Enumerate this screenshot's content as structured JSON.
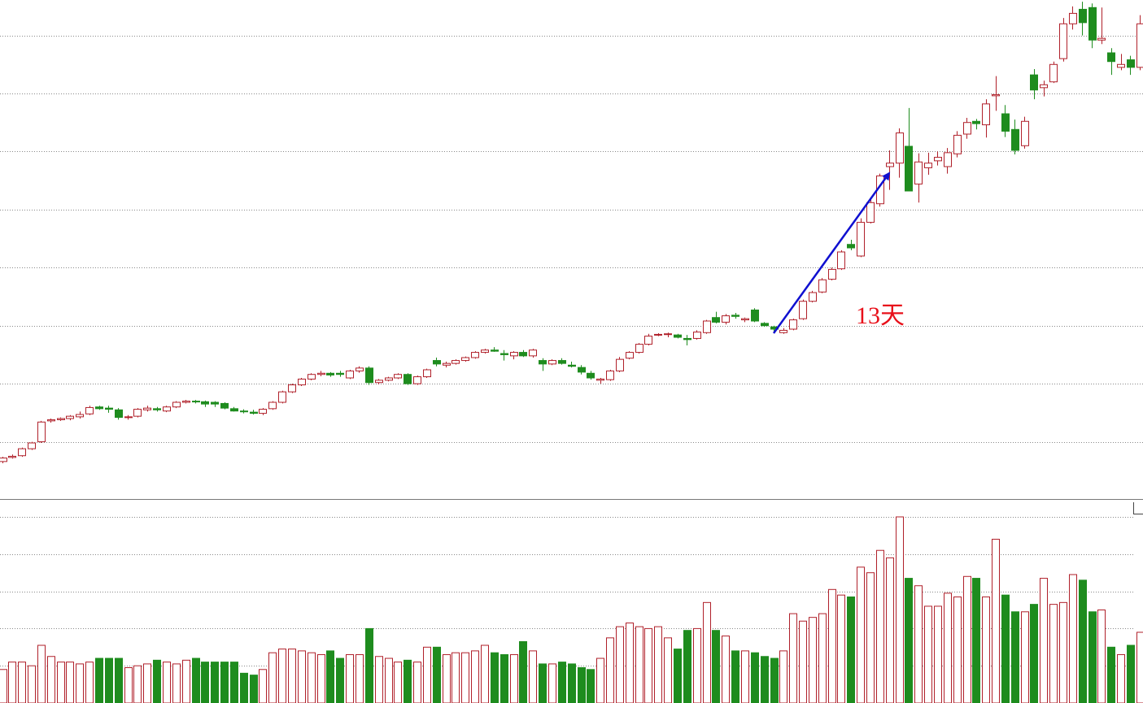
{
  "chart_data": {
    "type": "candlestick",
    "annotation": "13天",
    "up_color": "#b0202a",
    "down_color": "#1e8c1e",
    "grid": true,
    "ylim": [
      0,
      8.61
    ],
    "yticks": [
      1,
      2,
      3,
      4,
      5,
      6,
      7,
      8
    ],
    "volume_ylim": [
      0,
      5
    ],
    "volume_yticks": [
      1,
      2,
      3,
      4,
      5
    ],
    "candles": [
      [
        0.66,
        0.74,
        0.63,
        0.72
      ],
      [
        0.73,
        0.78,
        0.71,
        0.75
      ],
      [
        0.76,
        0.9,
        0.74,
        0.88
      ],
      [
        0.88,
        1.0,
        0.86,
        0.98
      ],
      [
        1.0,
        1.36,
        0.98,
        1.34
      ],
      [
        1.36,
        1.4,
        1.33,
        1.38
      ],
      [
        1.38,
        1.42,
        1.36,
        1.4
      ],
      [
        1.4,
        1.46,
        1.37,
        1.44
      ],
      [
        1.43,
        1.52,
        1.4,
        1.47
      ],
      [
        1.48,
        1.62,
        1.46,
        1.59
      ],
      [
        1.6,
        1.62,
        1.55,
        1.57
      ],
      [
        1.58,
        1.62,
        1.5,
        1.56
      ],
      [
        1.55,
        1.58,
        1.38,
        1.42
      ],
      [
        1.42,
        1.46,
        1.38,
        1.43
      ],
      [
        1.44,
        1.58,
        1.42,
        1.56
      ],
      [
        1.55,
        1.62,
        1.52,
        1.58
      ],
      [
        1.57,
        1.6,
        1.52,
        1.55
      ],
      [
        1.53,
        1.62,
        1.51,
        1.6
      ],
      [
        1.6,
        1.7,
        1.58,
        1.68
      ],
      [
        1.68,
        1.72,
        1.66,
        1.7
      ],
      [
        1.7,
        1.72,
        1.66,
        1.69
      ],
      [
        1.69,
        1.71,
        1.6,
        1.65
      ],
      [
        1.68,
        1.7,
        1.6,
        1.65
      ],
      [
        1.66,
        1.68,
        1.56,
        1.58
      ],
      [
        1.57,
        1.6,
        1.52,
        1.53
      ],
      [
        1.53,
        1.56,
        1.49,
        1.52
      ],
      [
        1.51,
        1.55,
        1.47,
        1.49
      ],
      [
        1.49,
        1.58,
        1.46,
        1.56
      ],
      [
        1.57,
        1.7,
        1.55,
        1.68
      ],
      [
        1.68,
        1.88,
        1.66,
        1.86
      ],
      [
        1.86,
        2.0,
        1.84,
        1.98
      ],
      [
        1.98,
        2.1,
        1.96,
        2.08
      ],
      [
        2.08,
        2.18,
        2.06,
        2.16
      ],
      [
        2.16,
        2.22,
        2.13,
        2.18
      ],
      [
        2.18,
        2.2,
        2.12,
        2.15
      ],
      [
        2.18,
        2.22,
        2.12,
        2.16
      ],
      [
        2.1,
        2.24,
        2.08,
        2.22
      ],
      [
        2.22,
        2.3,
        2.19,
        2.27
      ],
      [
        2.27,
        2.3,
        1.98,
        2.02
      ],
      [
        2.02,
        2.08,
        1.99,
        2.06
      ],
      [
        2.06,
        2.12,
        2.04,
        2.1
      ],
      [
        2.1,
        2.18,
        2.08,
        2.16
      ],
      [
        2.16,
        2.18,
        1.98,
        2.0
      ],
      [
        2.0,
        2.14,
        1.98,
        2.12
      ],
      [
        2.12,
        2.26,
        2.1,
        2.24
      ],
      [
        2.4,
        2.45,
        2.3,
        2.34
      ],
      [
        2.32,
        2.38,
        2.28,
        2.35
      ],
      [
        2.35,
        2.42,
        2.33,
        2.4
      ],
      [
        2.4,
        2.47,
        2.38,
        2.45
      ],
      [
        2.45,
        2.56,
        2.43,
        2.54
      ],
      [
        2.54,
        2.6,
        2.52,
        2.58
      ],
      [
        2.58,
        2.63,
        2.55,
        2.56
      ],
      [
        2.52,
        2.58,
        2.4,
        2.5
      ],
      [
        2.48,
        2.56,
        2.42,
        2.54
      ],
      [
        2.54,
        2.58,
        2.46,
        2.48
      ],
      [
        2.48,
        2.6,
        2.45,
        2.58
      ],
      [
        2.4,
        2.44,
        2.22,
        2.34
      ],
      [
        2.34,
        2.42,
        2.32,
        2.4
      ],
      [
        2.4,
        2.44,
        2.33,
        2.35
      ],
      [
        2.32,
        2.38,
        2.28,
        2.3
      ],
      [
        2.28,
        2.32,
        2.16,
        2.2
      ],
      [
        2.18,
        2.22,
        2.07,
        2.1
      ],
      [
        2.06,
        2.1,
        2.0,
        2.08
      ],
      [
        2.07,
        2.24,
        2.05,
        2.22
      ],
      [
        2.22,
        2.46,
        2.2,
        2.42
      ],
      [
        2.44,
        2.56,
        2.42,
        2.54
      ],
      [
        2.54,
        2.7,
        2.52,
        2.68
      ],
      [
        2.68,
        2.86,
        2.66,
        2.82
      ],
      [
        2.84,
        2.87,
        2.82,
        2.85
      ],
      [
        2.85,
        2.88,
        2.8,
        2.86
      ],
      [
        2.84,
        2.86,
        2.78,
        2.8
      ],
      [
        2.78,
        2.84,
        2.66,
        2.76
      ],
      [
        2.78,
        2.92,
        2.76,
        2.89
      ],
      [
        2.88,
        3.1,
        2.86,
        3.08
      ],
      [
        3.14,
        3.24,
        3.04,
        3.06
      ],
      [
        3.06,
        3.2,
        3.02,
        3.17
      ],
      [
        3.18,
        3.22,
        3.12,
        3.16
      ],
      [
        3.1,
        3.14,
        3.06,
        3.12
      ],
      [
        3.27,
        3.3,
        3.06,
        3.08
      ],
      [
        3.04,
        3.06,
        2.98,
        3.0
      ],
      [
        2.98,
        3.0,
        2.9,
        2.94
      ],
      [
        2.88,
        2.96,
        2.86,
        2.92
      ],
      [
        2.94,
        3.12,
        2.92,
        3.1
      ],
      [
        3.12,
        3.45,
        3.1,
        3.42
      ],
      [
        3.42,
        3.6,
        3.4,
        3.57
      ],
      [
        3.58,
        3.82,
        3.56,
        3.79
      ],
      [
        3.8,
        4.0,
        3.78,
        3.97
      ],
      [
        3.98,
        4.3,
        3.96,
        4.27
      ],
      [
        4.4,
        4.48,
        4.3,
        4.34
      ],
      [
        4.2,
        4.85,
        4.18,
        4.78
      ],
      [
        4.78,
        5.18,
        4.76,
        5.12
      ],
      [
        5.1,
        5.62,
        5.05,
        5.58
      ],
      [
        5.74,
        6.02,
        5.34,
        5.8
      ],
      [
        5.8,
        6.4,
        5.55,
        6.32
      ],
      [
        6.09,
        6.75,
        5.35,
        5.32
      ],
      [
        5.44,
        5.97,
        5.12,
        5.82
      ],
      [
        5.72,
        5.98,
        5.6,
        5.8
      ],
      [
        5.84,
        6.0,
        5.76,
        5.9
      ],
      [
        5.74,
        6.06,
        5.62,
        5.98
      ],
      [
        5.96,
        6.35,
        5.9,
        6.28
      ],
      [
        6.3,
        6.58,
        6.22,
        6.5
      ],
      [
        6.52,
        6.56,
        6.38,
        6.48
      ],
      [
        6.46,
        6.9,
        6.24,
        6.82
      ],
      [
        6.96,
        7.3,
        6.7,
        6.98
      ],
      [
        6.65,
        6.8,
        6.25,
        6.35
      ],
      [
        6.38,
        6.55,
        5.95,
        6.02
      ],
      [
        6.1,
        6.6,
        6.05,
        6.52
      ],
      [
        7.32,
        7.42,
        6.9,
        7.06
      ],
      [
        7.1,
        7.22,
        6.95,
        7.15
      ],
      [
        7.2,
        7.55,
        7.18,
        7.5
      ],
      [
        7.6,
        8.3,
        7.55,
        8.2
      ],
      [
        8.2,
        8.5,
        8.1,
        8.38
      ],
      [
        8.45,
        8.58,
        8.0,
        8.22
      ],
      [
        8.48,
        8.55,
        7.78,
        7.92
      ],
      [
        7.92,
        8.48,
        7.85,
        7.95
      ],
      [
        7.7,
        7.78,
        7.32,
        7.55
      ],
      [
        7.45,
        7.68,
        7.4,
        7.5
      ],
      [
        7.58,
        7.65,
        7.32,
        7.45
      ],
      [
        7.45,
        8.35,
        7.4,
        8.2
      ]
    ],
    "volume": [
      0.9,
      1.1,
      1.1,
      1.0,
      1.55,
      1.25,
      1.1,
      1.1,
      1.05,
      1.1,
      1.2,
      1.2,
      1.2,
      0.95,
      1.0,
      1.05,
      1.15,
      1.1,
      1.05,
      1.15,
      1.2,
      1.1,
      1.1,
      1.1,
      1.1,
      0.8,
      0.75,
      0.9,
      1.35,
      1.45,
      1.45,
      1.4,
      1.35,
      1.3,
      1.4,
      1.2,
      1.3,
      1.3,
      2.0,
      1.25,
      1.2,
      1.1,
      1.15,
      1.1,
      1.5,
      1.5,
      1.3,
      1.35,
      1.35,
      1.4,
      1.55,
      1.35,
      1.3,
      1.3,
      1.65,
      1.4,
      1.05,
      1.05,
      1.1,
      1.05,
      0.95,
      0.9,
      1.2,
      1.75,
      2.05,
      2.15,
      2.05,
      2.0,
      2.05,
      1.75,
      1.45,
      1.95,
      2.0,
      2.7,
      1.95,
      1.8,
      1.4,
      1.4,
      1.35,
      1.25,
      1.2,
      1.4,
      2.4,
      2.2,
      2.3,
      2.4,
      3.05,
      2.9,
      2.85,
      3.65,
      3.5,
      4.1,
      3.9,
      5.0,
      3.35,
      3.15,
      2.6,
      2.6,
      2.95,
      2.85,
      3.4,
      3.35,
      2.85,
      4.4,
      2.9,
      2.45,
      2.45,
      2.65,
      3.35,
      2.65,
      2.7,
      3.45,
      3.3,
      2.45,
      2.5,
      1.5,
      1.3,
      1.55,
      1.9
    ]
  }
}
